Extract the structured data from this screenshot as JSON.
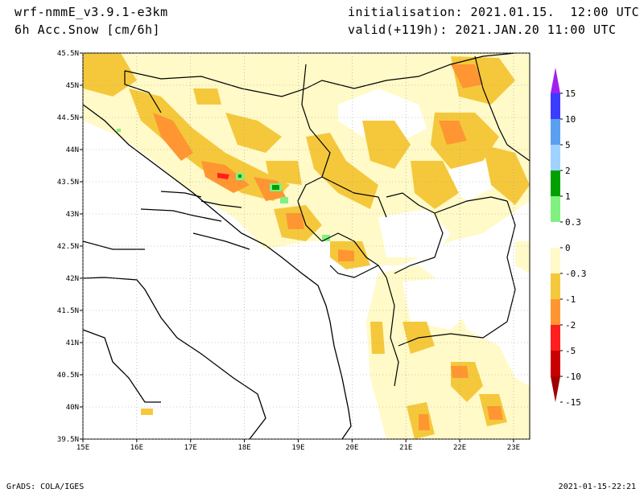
{
  "header": {
    "model": "wrf-nmmE_v3.9.1-e3km",
    "variable": "6h Acc.Snow [cm/6h]",
    "init": "initialisation: 2021.01.15.  12:00 UTC",
    "valid": "valid(+119h): 2021.JAN.20 11:00 UTC"
  },
  "map": {
    "lat_labels": [
      "45.5N",
      "45N",
      "44.5N",
      "44N",
      "43.5N",
      "43N",
      "42.5N",
      "42N",
      "41.5N",
      "41N",
      "40.5N",
      "40N",
      "39.5N"
    ],
    "lon_labels": [
      "15E",
      "16E",
      "17E",
      "18E",
      "19E",
      "20E",
      "21E",
      "22E",
      "23E"
    ],
    "lat_range": [
      39.5,
      45.5
    ],
    "lon_range": [
      15,
      23.3
    ],
    "grid": "dotted"
  },
  "colorbar": {
    "labels": [
      "15",
      "10",
      "5",
      "2",
      "1",
      "0.3",
      "0",
      "-0.3",
      "-1",
      "-2",
      "-5",
      "-10",
      "-15"
    ],
    "colors": [
      "#a020f0",
      "#3c3cff",
      "#5aa0f0",
      "#a0d2ff",
      "#00a000",
      "#80f080",
      "#ffffff",
      "#fffac8",
      "#f5c83c",
      "#ff9632",
      "#ff1e1e",
      "#c80000",
      "#a00000"
    ]
  },
  "footer": {
    "left": "GrADS: COLA/IGES",
    "right": "2021-01-15-22:21"
  }
}
